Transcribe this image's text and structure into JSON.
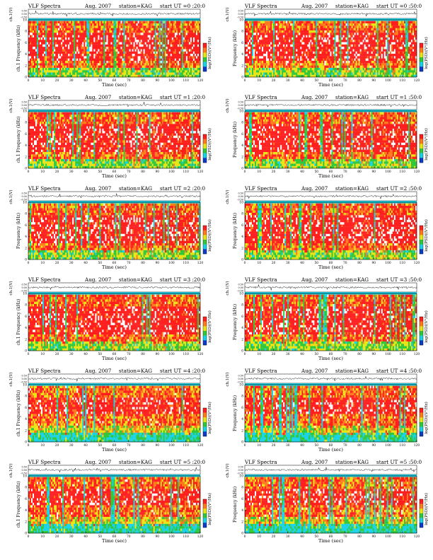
{
  "page": {
    "colors": {
      "background": "#ffffff",
      "low": "#0a3cc8",
      "mid_low": "#18d2e6",
      "mid": "#31c73a",
      "mid_high": "#e8e416",
      "high": "#ff7a1a",
      "peak": "#ff1e1e",
      "trace": "#000000"
    }
  },
  "chart_data": [
    {
      "type": "heatmap",
      "title": "VLF Spectra",
      "date": "Aug. 2007",
      "station": "station=KAG",
      "start": "start UT =0 :20:0",
      "ylabel_top": "ch.1(V)",
      "ylabel": "ch.1 Frequency (kHz)",
      "xlabel": "Time (sec)",
      "colorbar_label": "log(PSD)(V²/Hz)",
      "x_ticks": [
        "0",
        "10",
        "20",
        "30",
        "40",
        "50",
        "60",
        "70",
        "80",
        "90",
        "100",
        "110",
        "120"
      ],
      "y_ticks": [
        "0",
        "2",
        "4",
        "6",
        "8",
        "10"
      ],
      "top_ticks": [
        "0.50",
        "0.00",
        "-0.50"
      ],
      "xlim": [
        0,
        120
      ],
      "ylim": [
        0,
        10
      ],
      "band_kHz": [
        0,
        9.8
      ]
    },
    {
      "type": "heatmap",
      "title": "VLF Spectra",
      "date": "Aug. 2007",
      "station": "station=KAG",
      "start": "start UT =0 :50:0",
      "ylabel_top": "ch.1(V)",
      "ylabel": "Frequency (kHz)",
      "xlabel": "Time (sec)",
      "colorbar_label": "log(PSD)(V²/Hz)",
      "x_ticks": [
        "0",
        "10",
        "20",
        "30",
        "40",
        "50",
        "60",
        "70",
        "80",
        "90",
        "100",
        "110",
        "120"
      ],
      "y_ticks": [
        "0",
        "2",
        "4",
        "6",
        "8",
        "10"
      ],
      "top_ticks": [
        "0.50",
        "0.00",
        "-0.50"
      ],
      "xlim": [
        0,
        120
      ],
      "ylim": [
        0,
        10
      ],
      "band_kHz": [
        0,
        9.8
      ]
    },
    {
      "type": "heatmap",
      "title": "VLF Spectra",
      "date": "Aug. 2007",
      "station": "station=KAG",
      "start": "start UT =1 :20:0",
      "ylabel_top": "ch.1(V)",
      "ylabel": "ch.1 Frequency (kHz)",
      "xlabel": "Time (sec)",
      "colorbar_label": "log(PSD)(V²/Hz)",
      "x_ticks": [
        "0",
        "10",
        "20",
        "30",
        "40",
        "50",
        "60",
        "70",
        "80",
        "90",
        "100",
        "110",
        "120"
      ],
      "y_ticks": [
        "0",
        "2",
        "4",
        "6",
        "8",
        "10"
      ],
      "top_ticks": [
        "0.50",
        "0.00",
        "-0.50"
      ],
      "xlim": [
        0,
        120
      ],
      "ylim": [
        0,
        10
      ],
      "band_kHz": [
        0,
        9.8
      ]
    },
    {
      "type": "heatmap",
      "title": "VLF Spectra",
      "date": "Aug. 2007",
      "station": "station=KAG",
      "start": "start UT =1 :50:0",
      "ylabel_top": "ch.1(V)",
      "ylabel": "Frequency (kHz)",
      "xlabel": "Time (sec)",
      "colorbar_label": "log(PSD)(V²/Hz)",
      "x_ticks": [
        "0",
        "10",
        "20",
        "30",
        "40",
        "50",
        "60",
        "70",
        "80",
        "90",
        "100",
        "110",
        "120"
      ],
      "y_ticks": [
        "0",
        "2",
        "4",
        "6",
        "8",
        "10"
      ],
      "top_ticks": [
        "0.50",
        "0.00",
        "-0.50"
      ],
      "xlim": [
        0,
        120
      ],
      "ylim": [
        0,
        10
      ],
      "band_kHz": [
        0,
        9.8
      ]
    },
    {
      "type": "heatmap",
      "title": "VLF Spectra",
      "date": "Aug. 2007",
      "station": "station=KAG",
      "start": "start UT =2 :20:0",
      "ylabel_top": "ch.1(V)",
      "ylabel": "Frequency (kHz)",
      "xlabel": "Time (sec)",
      "colorbar_label": "log(PSD)(V²/Hz)",
      "x_ticks": [
        "0",
        "10",
        "20",
        "30",
        "40",
        "50",
        "60",
        "70",
        "80",
        "90",
        "100",
        "110",
        "120"
      ],
      "y_ticks": [
        "0",
        "2",
        "4",
        "6",
        "8",
        "10"
      ],
      "top_ticks": [
        "0.50",
        "0.00",
        "-0.50"
      ],
      "xlim": [
        0,
        120
      ],
      "ylim": [
        0,
        10
      ],
      "band_kHz": [
        0,
        9.8
      ]
    },
    {
      "type": "heatmap",
      "title": "VLF Spectra",
      "date": "Aug. 2007",
      "station": "station=KAG",
      "start": "start UT =2 :50:0",
      "ylabel_top": "ch.1(V)",
      "ylabel": "Frequency (kHz)",
      "xlabel": "Time (sec)",
      "colorbar_label": "log(PSD)(V²/Hz)",
      "x_ticks": [
        "0",
        "10",
        "20",
        "30",
        "40",
        "50",
        "60",
        "70",
        "80",
        "90",
        "100",
        "110",
        "120"
      ],
      "y_ticks": [
        "0",
        "2",
        "4",
        "6",
        "8",
        "10"
      ],
      "top_ticks": [
        "0.50",
        "0.00",
        "-0.50"
      ],
      "xlim": [
        0,
        120
      ],
      "ylim": [
        0,
        10
      ],
      "band_kHz": [
        0,
        9.8
      ]
    },
    {
      "type": "heatmap",
      "title": "VLF Spectra",
      "date": "Aug. 2007",
      "station": "station=KAG",
      "start": "start UT =3 :20:0",
      "ylabel_top": "ch.1(V)",
      "ylabel": "ch.1 Frequency (kHz)",
      "xlabel": "Time (sec)",
      "colorbar_label": "log(PSD)(V²/Hz)",
      "x_ticks": [
        "0",
        "10",
        "20",
        "30",
        "40",
        "50",
        "60",
        "70",
        "80",
        "90",
        "100",
        "110",
        "120"
      ],
      "y_ticks": [
        "0",
        "2",
        "4",
        "6",
        "8",
        "10"
      ],
      "top_ticks": [
        "0.50",
        "0.00",
        "-0.50"
      ],
      "xlim": [
        0,
        120
      ],
      "ylim": [
        0,
        10
      ],
      "band_kHz": [
        0,
        9.8
      ]
    },
    {
      "type": "heatmap",
      "title": "VLF Spectra",
      "date": "Aug. 2007",
      "station": "station=KAG",
      "start": "start UT =3 :50:0",
      "ylabel_top": "ch.1(V)",
      "ylabel": "Frequency (kHz)",
      "xlabel": "Time (sec)",
      "colorbar_label": "log(PSD)(V²/Hz)",
      "x_ticks": [
        "0",
        "10",
        "20",
        "30",
        "40",
        "50",
        "60",
        "70",
        "80",
        "90",
        "100",
        "110",
        "120"
      ],
      "y_ticks": [
        "0",
        "2",
        "4",
        "6",
        "8",
        "10"
      ],
      "top_ticks": [
        "0.50",
        "0.00",
        "-0.50"
      ],
      "xlim": [
        0,
        120
      ],
      "ylim": [
        0,
        10
      ],
      "band_kHz": [
        0,
        9.8
      ]
    },
    {
      "type": "heatmap",
      "title": "VLF Spectra",
      "date": "Aug. 2007",
      "station": "station=KAG",
      "start": "start UT =4 :20:0",
      "ylabel_top": "ch.1(V)",
      "ylabel": "ch.1 Frequency (kHz)",
      "xlabel": "Time (sec)",
      "colorbar_label": "log(PSD)(V²/Hz)",
      "x_ticks": [
        "0",
        "10",
        "20",
        "30",
        "40",
        "50",
        "60",
        "70",
        "80",
        "90",
        "100",
        "110",
        "120"
      ],
      "y_ticks": [
        "0",
        "2",
        "4",
        "6",
        "8",
        "10"
      ],
      "top_ticks": [
        "0.50",
        "0.00",
        "-0.50"
      ],
      "xlim": [
        0,
        120
      ],
      "ylim": [
        0,
        10
      ],
      "band_kHz": [
        0,
        9.8
      ]
    },
    {
      "type": "heatmap",
      "title": "VLF Spectra",
      "date": "Aug. 2007",
      "station": "station=KAG",
      "start": "start UT =4 :50:0",
      "ylabel_top": "ch.1(V)",
      "ylabel": "Frequency (kHz)",
      "xlabel": "Time (sec)",
      "colorbar_label": "log(PSD)(V²/Hz)",
      "x_ticks": [
        "0",
        "10",
        "20",
        "30",
        "40",
        "50",
        "60",
        "70",
        "80",
        "90",
        "100",
        "110",
        "120"
      ],
      "y_ticks": [
        "0",
        "2",
        "4",
        "6",
        "8",
        "10"
      ],
      "top_ticks": [
        "0.50",
        "0.00",
        "-0.50"
      ],
      "xlim": [
        0,
        120
      ],
      "ylim": [
        0,
        10
      ],
      "band_kHz": [
        0,
        9.8
      ]
    },
    {
      "type": "heatmap",
      "title": "VLF Spectra",
      "date": "Aug. 2007",
      "station": "station=KAG",
      "start": "start UT =5 :20:0",
      "ylabel_top": "ch.1(V)",
      "ylabel": "ch.1 Frequency (kHz)",
      "xlabel": "Time (sec)",
      "colorbar_label": "log(PSD)(V²/Hz)",
      "x_ticks": [
        "0",
        "10",
        "20",
        "30",
        "40",
        "50",
        "60",
        "70",
        "80",
        "90",
        "100",
        "110",
        "120"
      ],
      "y_ticks": [
        "0",
        "2",
        "4",
        "6",
        "8",
        "10"
      ],
      "top_ticks": [
        "0.50",
        "0.00",
        "-0.50"
      ],
      "xlim": [
        0,
        120
      ],
      "ylim": [
        0,
        10
      ],
      "band_kHz": [
        0,
        9.8
      ]
    },
    {
      "type": "heatmap",
      "title": "VLF Spectra",
      "date": "Aug. 2007",
      "station": "station=KAG",
      "start": "start UT =5 :50:0",
      "ylabel_top": "ch.1(V)",
      "ylabel": "Frequency (kHz)",
      "xlabel": "Time (sec)",
      "colorbar_label": "log(PSD)(V²/Hz)",
      "x_ticks": [
        "0",
        "10",
        "20",
        "30",
        "40",
        "50",
        "60",
        "70",
        "80",
        "90",
        "100",
        "110",
        "120"
      ],
      "y_ticks": [
        "0",
        "2",
        "4",
        "6",
        "8",
        "10"
      ],
      "top_ticks": [
        "0.50",
        "0.00",
        "-0.50"
      ],
      "xlim": [
        0,
        120
      ],
      "ylim": [
        0,
        10
      ],
      "band_kHz": [
        0,
        9.8
      ]
    }
  ]
}
